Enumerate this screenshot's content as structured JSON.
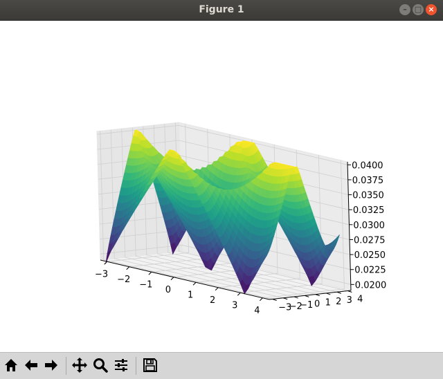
{
  "window": {
    "title": "Figure 1",
    "minimize_glyph": "–",
    "maximize_glyph": "□",
    "close_glyph": "×"
  },
  "toolbar": {
    "buttons": [
      {
        "name": "home-button",
        "icon": "home-icon"
      },
      {
        "name": "back-button",
        "icon": "arrow-left-icon"
      },
      {
        "name": "forward-button",
        "icon": "arrow-right-icon"
      },
      {
        "name": "pan-button",
        "icon": "move-icon"
      },
      {
        "name": "zoom-button",
        "icon": "magnifier-icon"
      },
      {
        "name": "subplots-button",
        "icon": "sliders-icon"
      },
      {
        "name": "save-button",
        "icon": "floppy-icon"
      }
    ]
  },
  "chart_data": {
    "type": "surface",
    "title": "",
    "xlabel": "",
    "ylabel": "",
    "zlabel": "",
    "colormap": "viridis",
    "x_ticks": [
      -3,
      -2,
      -1,
      0,
      1,
      2,
      3,
      4
    ],
    "y_ticks": [
      -3,
      -2,
      -1,
      0,
      1,
      2,
      3,
      4
    ],
    "z_ticks": [
      "0.0200",
      "0.0225",
      "0.0250",
      "0.0275",
      "0.0300",
      "0.0325",
      "0.0350",
      "0.0375",
      "0.0400"
    ],
    "xlim": [
      -3.3,
      4.3
    ],
    "ylim": [
      -3.3,
      4.3
    ],
    "zlim": [
      0.019,
      0.0405
    ],
    "z_range": [
      0.0185,
      0.0402
    ],
    "grid": true,
    "surface": {
      "x_range": [
        -3.14,
        4.0
      ],
      "y_range": [
        -3.14,
        4.0
      ],
      "dips_at": [
        [
          -3.14,
          -3.14
        ],
        [
          3.14,
          -3.14
        ],
        [
          -3.14,
          3.14
        ],
        [
          3.14,
          3.14
        ],
        [
          0,
          0
        ]
      ]
    }
  }
}
